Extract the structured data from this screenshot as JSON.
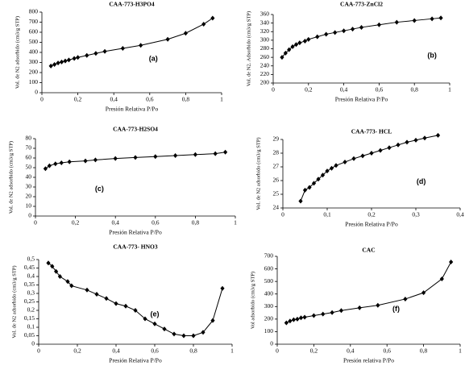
{
  "chart_data": [
    {
      "type": "line",
      "title": "CAA-773-H3PO4",
      "x_label": "Presión Relativa P/Po",
      "y_label": "Vol. de N2 adsorbido (cm3/g STP)",
      "annotation": "(a)",
      "color": "#000000",
      "marker": "diamond",
      "x": [
        0.05,
        0.07,
        0.09,
        0.11,
        0.13,
        0.15,
        0.18,
        0.2,
        0.25,
        0.3,
        0.35,
        0.45,
        0.55,
        0.7,
        0.8,
        0.9,
        0.95
      ],
      "values": [
        265,
        280,
        295,
        305,
        315,
        325,
        340,
        350,
        370,
        390,
        410,
        440,
        470,
        530,
        590,
        680,
        740
      ],
      "xlim": [
        0,
        1
      ],
      "xticks": [
        0,
        {
          "value": 0.2,
          "label": "0,2"
        },
        {
          "value": 0.4,
          "label": "0,4"
        },
        {
          "value": 0.6,
          "label": "0,6"
        },
        {
          "value": 0.8,
          "label": "0,8"
        },
        1
      ],
      "ylim": [
        0,
        800
      ],
      "yticks": [
        0,
        100,
        200,
        300,
        400,
        500,
        600,
        700,
        800
      ]
    },
    {
      "type": "line",
      "title": "CAA-773-ZnCl2",
      "x_label": "Presión Relativa P/Po",
      "y_label": "Vol. de N2. Adsorbido (cm3/g STP)",
      "annotation": "(b)",
      "color": "#000000",
      "marker": "diamond",
      "x": [
        0.05,
        0.07,
        0.09,
        0.11,
        0.13,
        0.15,
        0.18,
        0.2,
        0.25,
        0.3,
        0.35,
        0.4,
        0.45,
        0.5,
        0.6,
        0.7,
        0.8,
        0.9,
        0.95
      ],
      "values": [
        260,
        270,
        278,
        285,
        290,
        294,
        298,
        302,
        308,
        314,
        318,
        322,
        326,
        330,
        336,
        342,
        346,
        350,
        352
      ],
      "xlim": [
        0,
        1
      ],
      "xticks": [
        0,
        {
          "value": 0.2,
          "label": "0,2"
        },
        {
          "value": 0.4,
          "label": "0,4"
        },
        {
          "value": 0.6,
          "label": "0,6"
        },
        {
          "value": 0.8,
          "label": "0,8"
        },
        1
      ],
      "ylim": [
        200,
        360
      ],
      "yticks": [
        200,
        220,
        240,
        260,
        280,
        300,
        320,
        340,
        360
      ]
    },
    {
      "type": "line",
      "title": "CAA-773-H2SO4",
      "x_label": "Presión Relativa P/Po",
      "y_label": "Vol. de N2 adsorbido (cm3/g STP)",
      "annotation": "(c)",
      "color": "#000000",
      "marker": "diamond",
      "x": [
        0.05,
        0.07,
        0.1,
        0.13,
        0.17,
        0.25,
        0.3,
        0.4,
        0.5,
        0.6,
        0.7,
        0.8,
        0.9,
        0.95
      ],
      "values": [
        49,
        52,
        54,
        55,
        56,
        57,
        58,
        59.5,
        60.5,
        61.5,
        62.5,
        63.5,
        64.5,
        66
      ],
      "xlim": [
        0,
        1
      ],
      "xticks": [
        0,
        {
          "value": 0.2,
          "label": "0,2"
        },
        {
          "value": 0.4,
          "label": "0,4"
        },
        {
          "value": 0.6,
          "label": "0,6"
        },
        {
          "value": 0.8,
          "label": "0,8"
        },
        1
      ],
      "ylim": [
        0,
        80
      ],
      "yticks": [
        0,
        10,
        20,
        30,
        40,
        50,
        60,
        70,
        80
      ]
    },
    {
      "type": "line",
      "title": "CAA-773- HCL",
      "x_label": "Presión Relativa P/Po",
      "y_label": "Vol. de N2 adsorbido (cm3/g STP)",
      "annotation": "(d)",
      "color": "#000000",
      "marker": "diamond",
      "x": [
        0.04,
        0.05,
        0.06,
        0.07,
        0.08,
        0.09,
        0.1,
        0.11,
        0.12,
        0.14,
        0.16,
        0.18,
        0.2,
        0.22,
        0.24,
        0.26,
        0.28,
        0.3,
        0.32,
        0.35
      ],
      "values": [
        24.5,
        25.3,
        25.5,
        25.8,
        26.1,
        26.4,
        26.7,
        26.9,
        27.1,
        27.35,
        27.6,
        27.8,
        28.0,
        28.2,
        28.4,
        28.6,
        28.8,
        28.95,
        29.1,
        29.3
      ],
      "xlim": [
        0,
        0.4
      ],
      "xticks": [
        0,
        {
          "value": 0.1,
          "label": "0,1"
        },
        {
          "value": 0.2,
          "label": "0,2"
        },
        {
          "value": 0.3,
          "label": "0,3"
        },
        {
          "value": 0.4,
          "label": "0,4"
        }
      ],
      "ylim": [
        24,
        29
      ],
      "yticks": [
        24,
        25,
        26,
        27,
        28,
        29
      ]
    },
    {
      "type": "line",
      "title": "CAA-773- HNO3",
      "x_label": "Presión Relativa P/Po",
      "y_label": "Vol. de N2 adsorbido (cm3/g STP)",
      "annotation": "(e)",
      "color": "#000000",
      "marker": "diamond",
      "x": [
        0.05,
        0.07,
        0.09,
        0.11,
        0.15,
        0.17,
        0.25,
        0.3,
        0.35,
        0.4,
        0.45,
        0.5,
        0.55,
        0.6,
        0.65,
        0.7,
        0.75,
        0.8,
        0.85,
        0.9,
        0.95
      ],
      "values": [
        0.48,
        0.46,
        0.43,
        0.4,
        0.37,
        0.345,
        0.32,
        0.295,
        0.27,
        0.24,
        0.225,
        0.2,
        0.15,
        0.12,
        0.09,
        0.06,
        0.05,
        0.05,
        0.07,
        0.14,
        0.33
      ],
      "xlim": [
        0,
        1
      ],
      "xticks": [
        0,
        {
          "value": 0.2,
          "label": "0,2"
        },
        {
          "value": 0.4,
          "label": "0,4"
        },
        {
          "value": 0.6,
          "label": "0,6"
        },
        {
          "value": 0.8,
          "label": "0,8"
        },
        1
      ],
      "ylim": [
        0,
        0.5
      ],
      "yticks": [
        0,
        {
          "value": 0.05,
          "label": "0,05"
        },
        {
          "value": 0.1,
          "label": "0,1"
        },
        {
          "value": 0.15,
          "label": "0,15"
        },
        {
          "value": 0.2,
          "label": "0,2"
        },
        {
          "value": 0.25,
          "label": "0,25"
        },
        {
          "value": 0.3,
          "label": "0,3"
        },
        {
          "value": 0.35,
          "label": "0,35"
        },
        {
          "value": 0.4,
          "label": "0,4"
        },
        {
          "value": 0.45,
          "label": "0,45"
        },
        {
          "value": 0.5,
          "label": "0,5"
        }
      ]
    },
    {
      "type": "line",
      "title": "CAC",
      "x_label": "Presión relativa P/Po",
      "y_label": "Vol adsorbido (cm3/g STP)",
      "annotation": "(f)",
      "color": "#000000",
      "marker": "diamond",
      "x": [
        0.05,
        0.07,
        0.09,
        0.11,
        0.13,
        0.15,
        0.2,
        0.25,
        0.3,
        0.35,
        0.45,
        0.55,
        0.7,
        0.8,
        0.9,
        0.95
      ],
      "values": [
        170,
        185,
        195,
        200,
        210,
        215,
        228,
        240,
        252,
        268,
        290,
        310,
        360,
        410,
        520,
        655
      ],
      "xlim": [
        0,
        1
      ],
      "xticks": [
        0,
        {
          "value": 0.2,
          "label": "0,2"
        },
        {
          "value": 0.4,
          "label": "0,4"
        },
        {
          "value": 0.6,
          "label": "0,6"
        },
        {
          "value": 0.8,
          "label": "0,8"
        },
        1
      ],
      "ylim": [
        0,
        700
      ],
      "yticks": [
        0,
        100,
        200,
        300,
        400,
        500,
        600,
        700
      ]
    }
  ]
}
